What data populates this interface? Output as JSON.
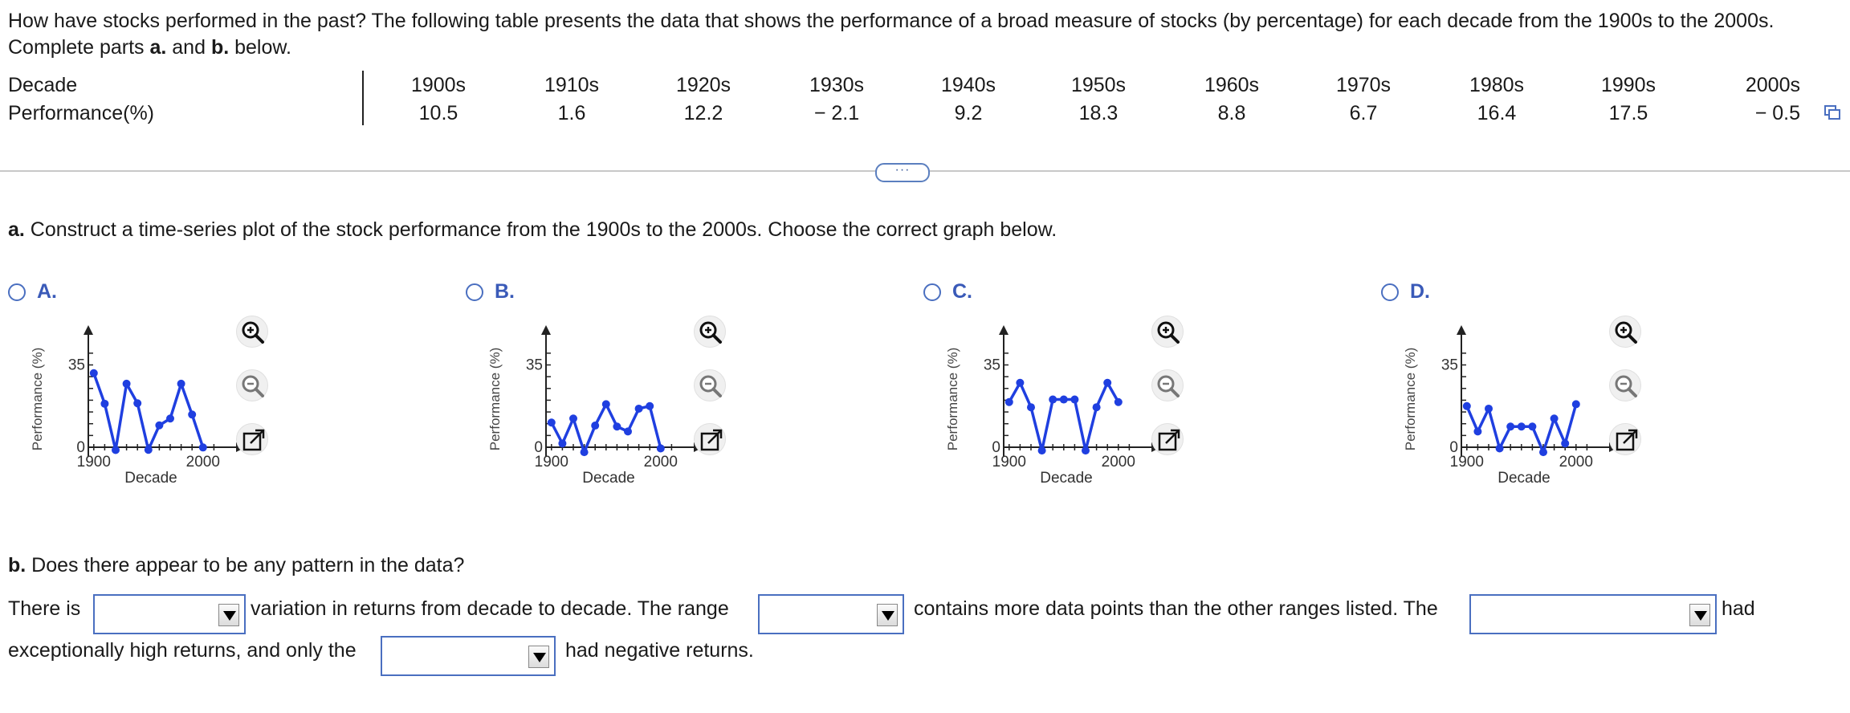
{
  "intro": {
    "text_part1": "How have stocks performed in the past? The following table presents the data that shows the performance of a broad measure of stocks (by percentage) for each decade from the 1900s to the 2000s. Complete parts ",
    "a": "a.",
    "mid": " and ",
    "b": "b.",
    "end": " below."
  },
  "table": {
    "row1_label": "Decade",
    "row2_label": "Performance(%)",
    "decades": [
      "1900s",
      "1910s",
      "1920s",
      "1930s",
      "1940s",
      "1950s",
      "1960s",
      "1970s",
      "1980s",
      "1990s",
      "2000s"
    ],
    "performance": [
      "10.5",
      "1.6",
      "12.2",
      "− 2.1",
      "9.2",
      "18.3",
      "8.8",
      "6.7",
      "16.4",
      "17.5",
      "− 0.5"
    ]
  },
  "more_button": "···",
  "part_a": {
    "label": "a.",
    "text": " Construct a time-series plot of the stock performance from the 1900s to the 2000s. Choose the correct graph below."
  },
  "options": [
    {
      "letter": "A.",
      "ylabel": "Performance (%)",
      "xlabel": "Decade",
      "y_tick": "35",
      "y_zero": "0",
      "x_tick_left": "1900",
      "x_tick_right": "2000"
    },
    {
      "letter": "B.",
      "ylabel": "Performance (%)",
      "xlabel": "Decade",
      "y_tick": "35",
      "y_zero": "0",
      "x_tick_left": "1900",
      "x_tick_right": "2000"
    },
    {
      "letter": "C.",
      "ylabel": "Performance (%)",
      "xlabel": "Decade",
      "y_tick": "35",
      "y_zero": "0",
      "x_tick_left": "1900",
      "x_tick_right": "2000"
    },
    {
      "letter": "D.",
      "ylabel": "Performance (%)",
      "xlabel": "Decade",
      "y_tick": "35",
      "y_zero": "0",
      "x_tick_left": "1900",
      "x_tick_right": "2000"
    }
  ],
  "chart_data": [
    {
      "type": "line",
      "option": "A",
      "x": [
        1900,
        1910,
        1920,
        1930,
        1940,
        1950,
        1960,
        1970,
        1980,
        1990,
        2000
      ],
      "values": [
        31.5,
        18.5,
        -1.2,
        27,
        18.7,
        -1.1,
        9.3,
        12.2,
        27,
        13.9,
        -0.1
      ],
      "xlim": [
        1895,
        2020
      ],
      "ylim": [
        -3,
        42
      ],
      "xlabel": "Decade",
      "ylabel": "Performance (%)",
      "color": "#1f3fe0"
    },
    {
      "type": "line",
      "option": "B",
      "x": [
        1900,
        1910,
        1920,
        1930,
        1940,
        1950,
        1960,
        1970,
        1980,
        1990,
        2000
      ],
      "values": [
        10.5,
        1.6,
        12.2,
        -2.1,
        9.2,
        18.3,
        8.8,
        6.7,
        16.4,
        17.5,
        -0.5
      ],
      "xlim": [
        1895,
        2020
      ],
      "ylim": [
        -3,
        42
      ],
      "xlabel": "Decade",
      "ylabel": "Performance (%)",
      "color": "#1f3fe0"
    },
    {
      "type": "line",
      "option": "C",
      "x": [
        1900,
        1910,
        1920,
        1930,
        1940,
        1950,
        1960,
        1970,
        1980,
        1990,
        2000
      ],
      "values": [
        19.2,
        27.4,
        17,
        -1.4,
        20.3,
        20.3,
        20.3,
        -1.4,
        17,
        27.4,
        19.2
      ],
      "xlim": [
        1895,
        2020
      ],
      "ylim": [
        -3,
        42
      ],
      "xlabel": "Decade",
      "ylabel": "Performance (%)",
      "color": "#1f3fe0"
    },
    {
      "type": "line",
      "option": "D",
      "x": [
        1900,
        1910,
        1920,
        1930,
        1940,
        1950,
        1960,
        1970,
        1980,
        1990,
        2000
      ],
      "values": [
        17.5,
        6.7,
        16.4,
        -0.5,
        8.8,
        8.8,
        8.8,
        -2.1,
        12.2,
        1.6,
        18.3
      ],
      "xlim": [
        1895,
        2020
      ],
      "ylim": [
        -3,
        42
      ],
      "xlabel": "Decade",
      "ylabel": "Performance (%)",
      "color": "#1f3fe0"
    }
  ],
  "part_b": {
    "label": "b.",
    "question": " Does there appear to be any pattern in the data?",
    "s1": "There is",
    "s2": "variation in returns from decade to decade. The range",
    "s3": "contains more data points than the other ranges listed. The",
    "s4": "had",
    "s5": "exceptionally high returns, and only the",
    "s6": "had negative returns."
  },
  "colors": {
    "series": "#1f3fe0",
    "accent": "#3a5ab8",
    "radio": "#4a6fc0"
  }
}
